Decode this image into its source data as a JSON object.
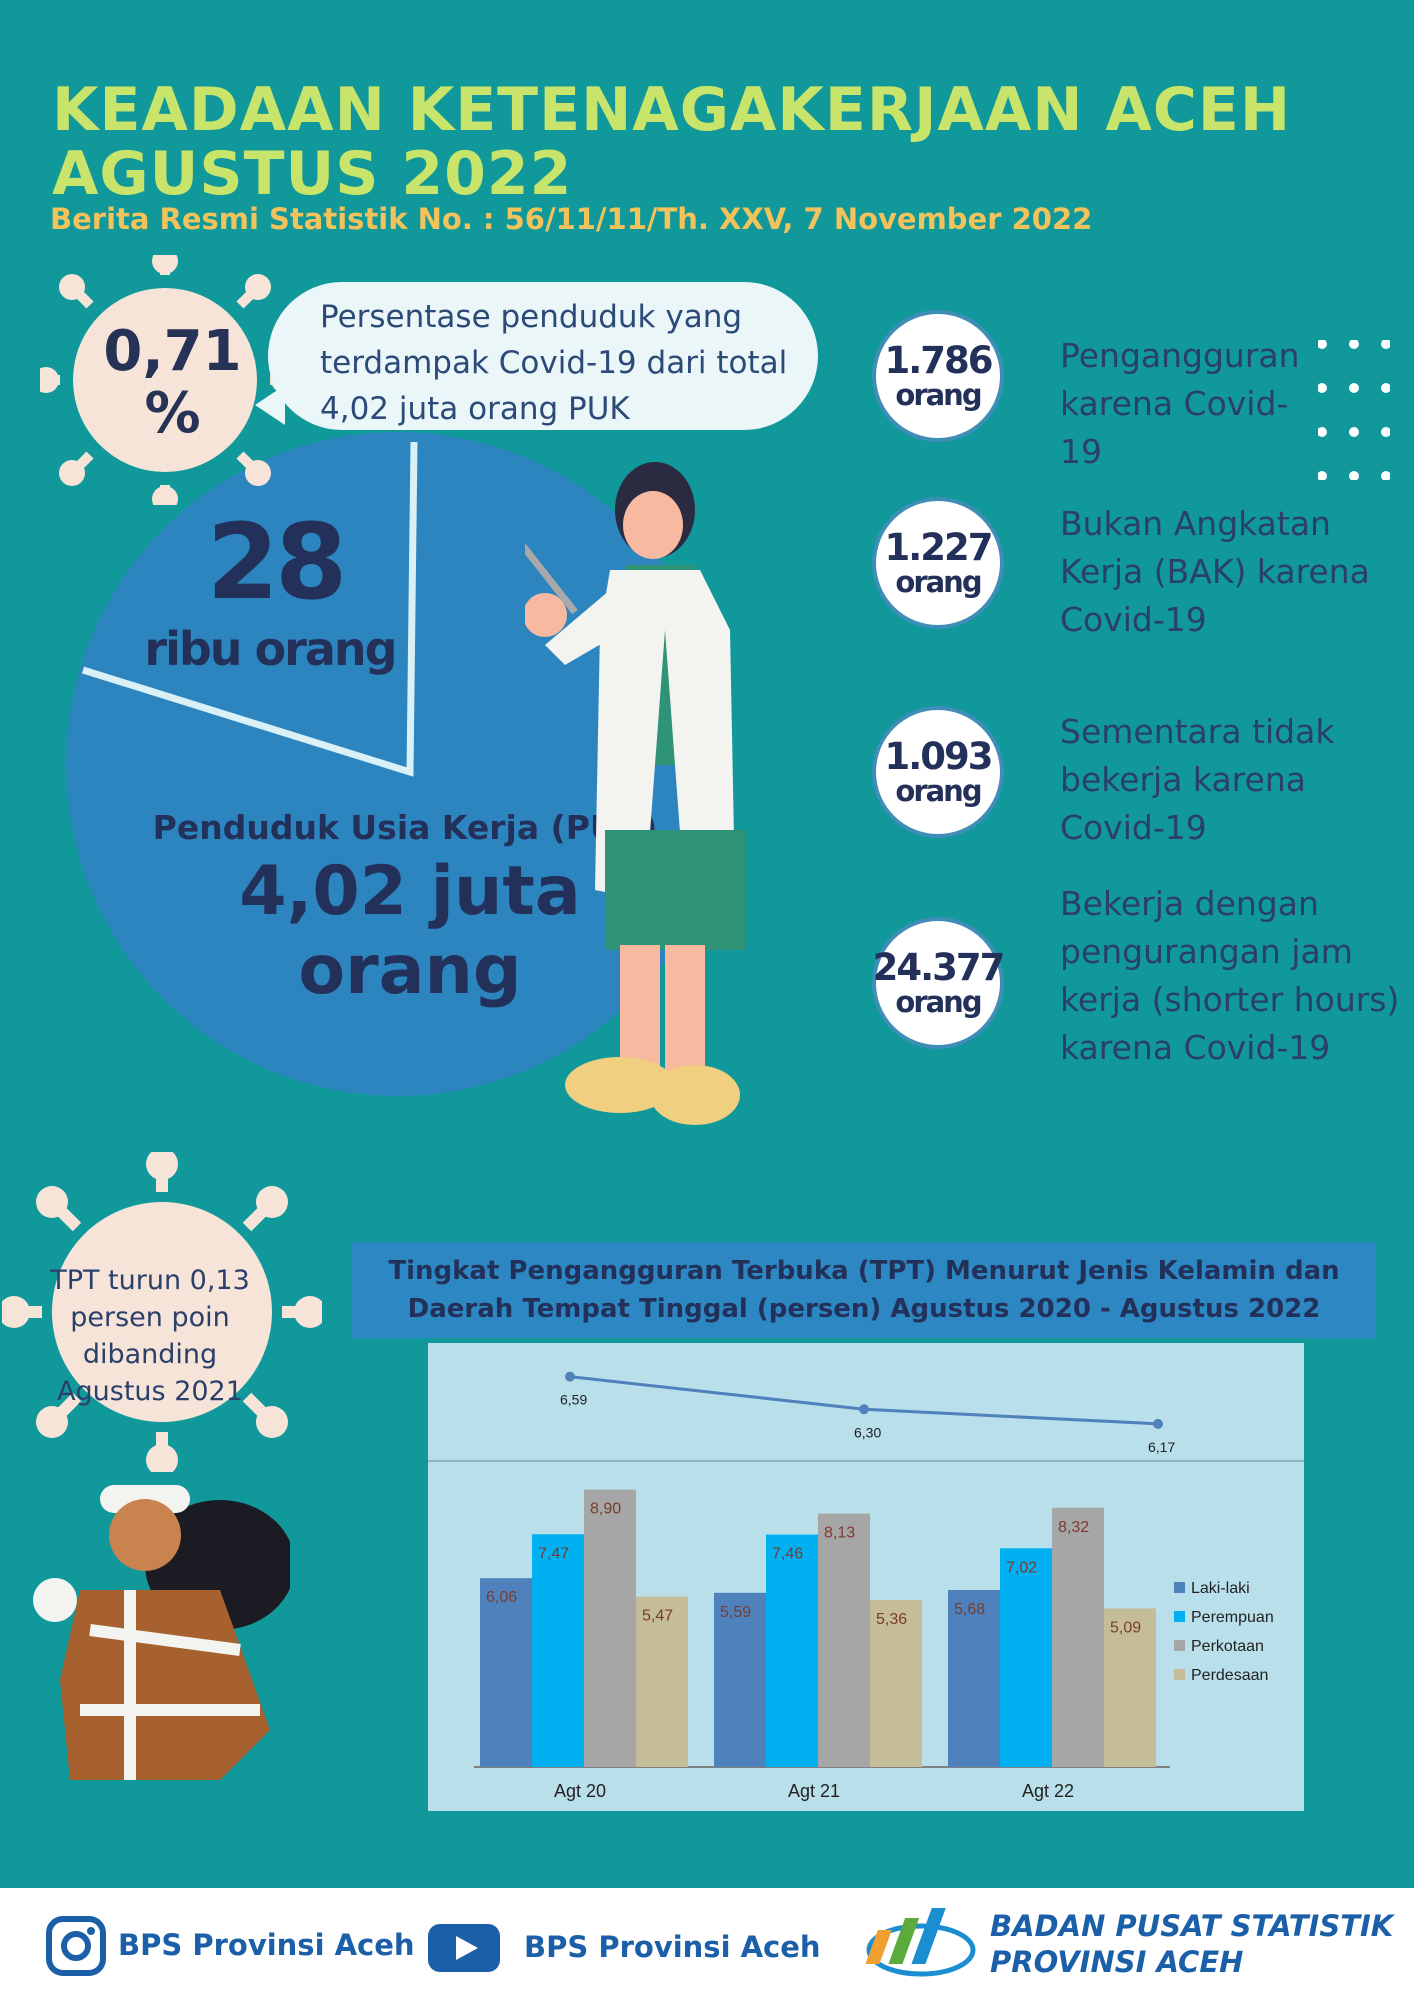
{
  "header": {
    "title_line1": "KEADAAN KETENAGAKERJAAN ACEH",
    "title_line2": "AGUSTUS 2022",
    "subtitle": "Berita Resmi Statistik No. : 56/11/11/Th. XXV, 7 November 2022"
  },
  "covid_share": {
    "percent": "0,71",
    "percent_sign": "%",
    "callout_line1": "Persentase penduduk yang",
    "callout_line2": "terdampak Covid-19 dari total",
    "callout_line3": "4,02 juta orang PUK",
    "share_fraction": 0.0071
  },
  "puk": {
    "affected_value": "28",
    "affected_unit": "ribu orang",
    "label": "Penduduk Usia Kerja (PUK)",
    "value": "4,02 juta orang"
  },
  "stats": [
    {
      "number": "1.786",
      "unit": "orang",
      "desc": "Pengangguran karena Covid-19"
    },
    {
      "number": "1.227",
      "unit": "orang",
      "desc": "Bukan Angkatan Kerja (BAK) karena Covid-19"
    },
    {
      "number": "1.093",
      "unit": "orang",
      "desc": "Sementara tidak bekerja karena Covid-19"
    },
    {
      "number": "24.377",
      "unit": "orang",
      "desc": "Bekerja dengan pengurangan jam kerja (shorter hours) karena Covid-19"
    }
  ],
  "tpt_note": {
    "line1": "TPT turun 0,13",
    "line2": "persen poin",
    "line3": "dibanding",
    "line4": "Agustus 2021"
  },
  "chart_title": {
    "line1": "Tingkat Pengangguran Terbuka (TPT) Menurut Jenis Kelamin dan",
    "line2": "Daerah Tempat Tinggal (persen) Agustus 2020 - Agustus 2022"
  },
  "chart_data": [
    {
      "type": "line",
      "categories": [
        "Agt 20",
        "Agt 21",
        "Agt 22"
      ],
      "series": [
        {
          "values": [
            6.59,
            6.3,
            6.17
          ]
        }
      ],
      "labels": [
        "6,59",
        "6,30",
        "6,17"
      ]
    },
    {
      "type": "bar",
      "categories": [
        "Agt 20",
        "Agt 21",
        "Agt 22"
      ],
      "series": [
        {
          "name": "Laki-laki",
          "values": [
            6.06,
            5.59,
            5.68
          ],
          "labels": [
            "6,06",
            "5,59",
            "5,68"
          ],
          "color": "#4f81bd"
        },
        {
          "name": "Perempuan",
          "values": [
            7.47,
            7.46,
            7.02
          ],
          "labels": [
            "7,47",
            "7,46",
            "7,02"
          ],
          "color": "#00b0f0"
        },
        {
          "name": "Perkotaan",
          "values": [
            8.9,
            8.13,
            8.32
          ],
          "labels": [
            "8,90",
            "8,13",
            "8,32"
          ],
          "color": "#a6a6a6"
        },
        {
          "name": "Perdesaan",
          "values": [
            5.47,
            5.36,
            5.09
          ],
          "labels": [
            "5,47",
            "5,36",
            "5,09"
          ],
          "color": "#c4bd97"
        }
      ],
      "ylim": [
        0,
        10
      ],
      "legend": "right"
    }
  ],
  "footer": {
    "instagram_label": "BPS Provinsi Aceh",
    "youtube_label": "BPS Provinsi Aceh",
    "org_line1": "BADAN PUSAT STATISTIK",
    "org_line2": "PROVINSI ACEH"
  },
  "colors": {
    "background": "#10989a",
    "title": "#c8e46a",
    "subtitle": "#f2c25b",
    "pie": "#2d85c0",
    "navy": "#23315a",
    "brand_blue": "#1a5fa8"
  }
}
